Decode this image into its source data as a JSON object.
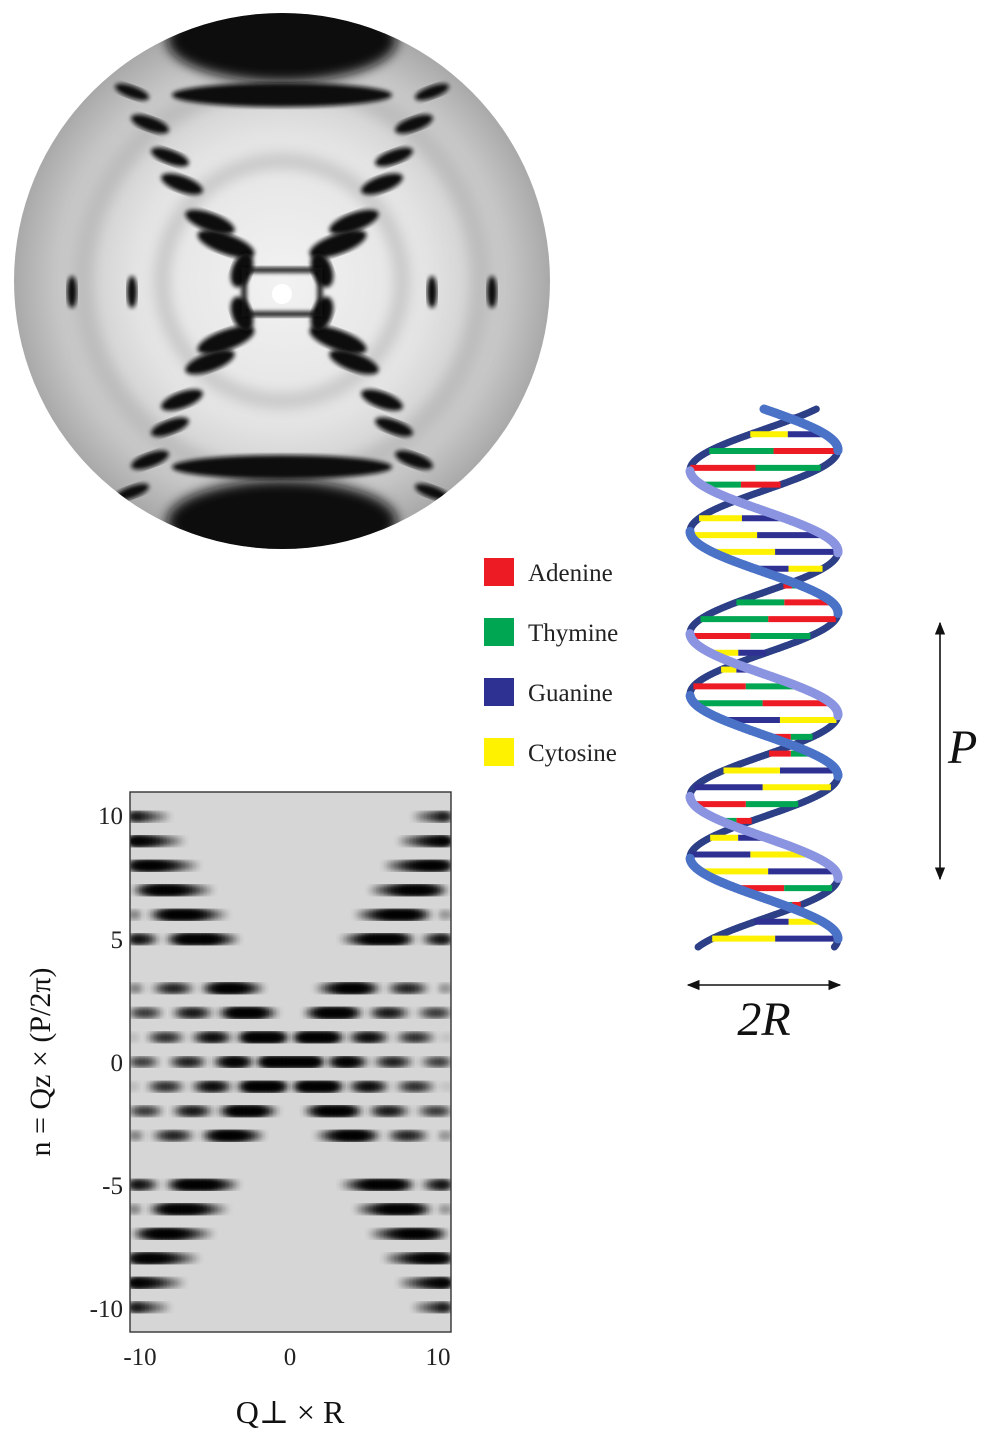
{
  "legend": {
    "items": [
      {
        "label": "Adenine",
        "color": "#ed1c24"
      },
      {
        "label": "Thymine",
        "color": "#00a651"
      },
      {
        "label": "Guanine",
        "color": "#2e3192"
      },
      {
        "label": "Cytosine",
        "color": "#fff200"
      }
    ]
  },
  "helix": {
    "pitch_label": "P",
    "diameter_label": "2R",
    "strand_color": "#4a73c8",
    "base_sequence": [
      "yellow",
      "blue",
      "red",
      "green",
      "red",
      "blue",
      "yellow",
      "yellow",
      "yellow",
      "blue",
      "green",
      "red",
      "red",
      "green",
      "blue",
      "yellow",
      "red",
      "green",
      "blue",
      "red",
      "green",
      "blue",
      "yellow",
      "green",
      "red",
      "yellow",
      "blue",
      "yellow",
      "red",
      "green",
      "yellow",
      "blue"
    ]
  },
  "chart_data": {
    "type": "heatmap",
    "xlabel": "Q⊥ × R",
    "ylabel": "n = Qz × (P/2π)",
    "x_ticks": [
      "-10",
      "0",
      "10"
    ],
    "y_ticks": [
      "10",
      "5",
      "0",
      "-5",
      "-10"
    ],
    "xlim": [
      -11,
      11
    ],
    "ylim": [
      -11,
      11
    ],
    "layer_lines": [
      -10,
      -9,
      -8,
      -7,
      -6,
      -5,
      -3,
      -2,
      -1,
      0,
      1,
      2,
      3,
      5,
      6,
      7,
      8,
      9,
      10
    ]
  }
}
